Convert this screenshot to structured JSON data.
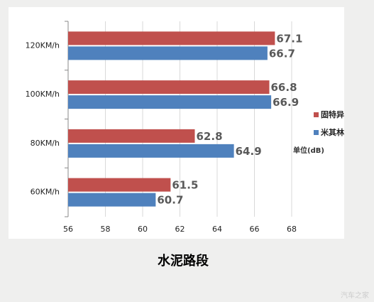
{
  "chart_data": {
    "type": "hbar",
    "title": "水泥路段",
    "unit_note": "单位(dB)",
    "watermark": "汽车之家",
    "categories": [
      "120KM/h",
      "100KM/h",
      "80KM/h",
      "60KM/h"
    ],
    "series": [
      {
        "name": "固特异",
        "color": "#c0504d",
        "values": [
          67.1,
          66.8,
          62.8,
          61.5
        ]
      },
      {
        "name": "米其林",
        "color": "#4f81bd",
        "values": [
          66.7,
          66.9,
          64.9,
          60.7
        ]
      }
    ],
    "xlim": [
      56,
      68
    ],
    "xticks": [
      56,
      58,
      60,
      62,
      64,
      66,
      68
    ],
    "grid": true,
    "legend": "right"
  }
}
